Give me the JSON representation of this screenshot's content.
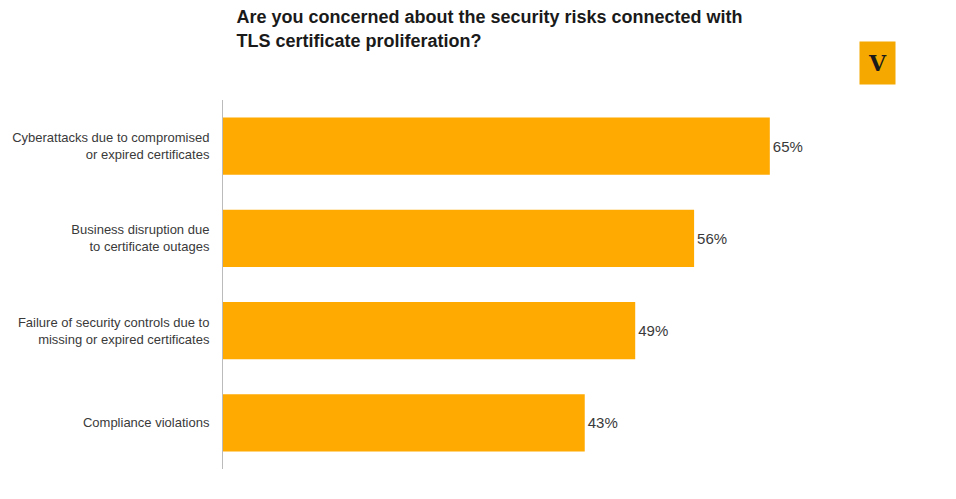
{
  "chart_data": {
    "type": "bar",
    "orientation": "horizontal",
    "title": "Are you concerned about the security risks connected with\nTLS certificate proliferation?",
    "categories": [
      "Cyberattacks due to compromised\nor expired certificates",
      "Business disruption due\nto certificate outages",
      "Failure of security controls due to\nmissing or expired certificates",
      "Compliance violations"
    ],
    "values": [
      65,
      56,
      49,
      43
    ],
    "value_labels": [
      "65%",
      "56%",
      "49%",
      "43%"
    ],
    "data_labels": true,
    "color": "#FFAA00",
    "xlim": [
      0,
      80
    ],
    "xticks": [],
    "tick_labels": "y",
    "grid": false,
    "annotations": [
      {
        "text": "V",
        "color": "#F5A800"
      }
    ]
  }
}
